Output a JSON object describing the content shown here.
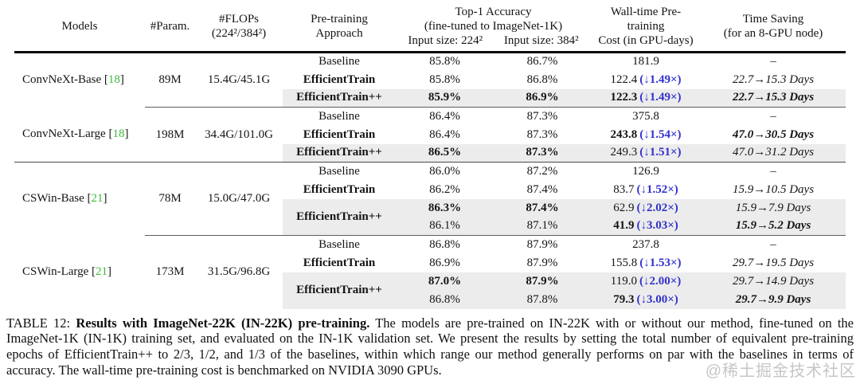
{
  "colors": {
    "speedup_blue": "#3232cd",
    "cite_green": "#3cba3c",
    "highlight_gray": "#ececec",
    "watermark_gray": "#c6c6c6"
  },
  "punct": {
    "ob": " [",
    "cb": "]"
  },
  "header": {
    "models": "Models",
    "param": "#Param.",
    "flops": [
      "#FLOPs",
      "(224²/384²)"
    ],
    "approach": [
      "Pre-training",
      "Approach"
    ],
    "accuracy": {
      "title": "Top-1 Accuracy",
      "subtitle": "(fine-tuned to ImageNet-1K)",
      "col224": "Input size: 224²",
      "col384": "Input size: 384²"
    },
    "cost": [
      "Wall-time Pre-training",
      "Cost (in GPU-days)"
    ],
    "saving": [
      "Time Saving",
      "(for an 8-GPU node)"
    ]
  },
  "groups": [
    {
      "model": "ConvNeXt-Base",
      "cite": "18",
      "param": "89M",
      "flops": "15.4G/45.1G",
      "rows": [
        {
          "approach": "Baseline",
          "acc224": "85.8%",
          "acc384": "86.7%",
          "cost": "181.9",
          "speedup": "",
          "saving": "–"
        },
        {
          "approach": "EfficientTrain",
          "acc224": "85.8%",
          "acc384": "86.8%",
          "cost": "122.4",
          "speedup": "(↓1.49×)",
          "saving": "22.7→15.3 Days"
        },
        {
          "approach": "EfficientTrain++",
          "acc224": "85.9%",
          "acc384": "86.9%",
          "cost": "122.3",
          "speedup": "(↓1.49×)",
          "saving": "22.7→15.3 Days"
        }
      ]
    },
    {
      "model": "ConvNeXt-Large",
      "cite": "18",
      "param": "198M",
      "flops": "34.4G/101.0G",
      "rows": [
        {
          "approach": "Baseline",
          "acc224": "86.4%",
          "acc384": "87.3%",
          "cost": "375.8",
          "speedup": "",
          "saving": "–"
        },
        {
          "approach": "EfficientTrain",
          "acc224": "86.4%",
          "acc384": "87.3%",
          "cost": "243.8",
          "speedup": "(↓1.54×)",
          "saving": "47.0→30.5 Days"
        },
        {
          "approach": "EfficientTrain++",
          "acc224": "86.5%",
          "acc384": "87.3%",
          "cost": "249.3",
          "speedup": "(↓1.51×)",
          "saving": "47.0→31.2 Days"
        }
      ]
    },
    {
      "model": "CSWin-Base",
      "cite": "21",
      "param": "78M",
      "flops": "15.0G/47.0G",
      "rows": [
        {
          "approach": "Baseline",
          "acc224": "86.0%",
          "acc384": "87.2%",
          "cost": "126.9",
          "speedup": "",
          "saving": "–"
        },
        {
          "approach": "EfficientTrain",
          "acc224": "86.2%",
          "acc384": "87.4%",
          "cost": "83.7",
          "speedup": "(↓1.52×)",
          "saving": "15.9→10.5 Days"
        },
        {
          "approach": "EfficientTrain++",
          "acc224": "86.3%",
          "acc384": "87.4%",
          "cost": "62.9",
          "speedup": "(↓2.02×)",
          "saving": "15.9→7.9 Days"
        },
        {
          "acc224": "86.1%",
          "acc384": "87.1%",
          "cost": "41.9",
          "speedup": "(↓3.03×)",
          "saving": "15.9→5.2 Days"
        }
      ]
    },
    {
      "model": "CSWin-Large",
      "cite": "21",
      "param": "173M",
      "flops": "31.5G/96.8G",
      "rows": [
        {
          "approach": "Baseline",
          "acc224": "86.8%",
          "acc384": "87.9%",
          "cost": "237.8",
          "speedup": "",
          "saving": "–"
        },
        {
          "approach": "EfficientTrain",
          "acc224": "86.9%",
          "acc384": "87.9%",
          "cost": "155.8",
          "speedup": "(↓1.53×)",
          "saving": "29.7→19.5 Days"
        },
        {
          "approach": "EfficientTrain++",
          "acc224": "87.0%",
          "acc384": "87.9%",
          "cost": "119.0",
          "speedup": "(↓2.00×)",
          "saving": "29.7→14.9 Days"
        },
        {
          "acc224": "86.8%",
          "acc384": "87.8%",
          "cost": "79.3",
          "speedup": "(↓3.00×)",
          "saving": "29.7→9.9 Days"
        }
      ]
    }
  ],
  "caption": {
    "label": "TABLE 12: ",
    "bold": "Results with ImageNet-22K (IN-22K) pre-training.",
    "rest": " The models are pre-trained on IN-22K with or without our method, fine-tuned on the ImageNet-1K (IN-1K) training set, and evaluated on the IN-1K validation set. We present the results by setting the total number of equivalent pre-training epochs of EfficientTrain++ to 2/3, 1/2, and 1/3 of the baselines, within which range our method generally performs on par with the baselines in terms of accuracy. The wall-time pre-training cost is benchmarked on NVIDIA 3090 GPUs."
  },
  "watermark": "@稀土掘金技术社区"
}
